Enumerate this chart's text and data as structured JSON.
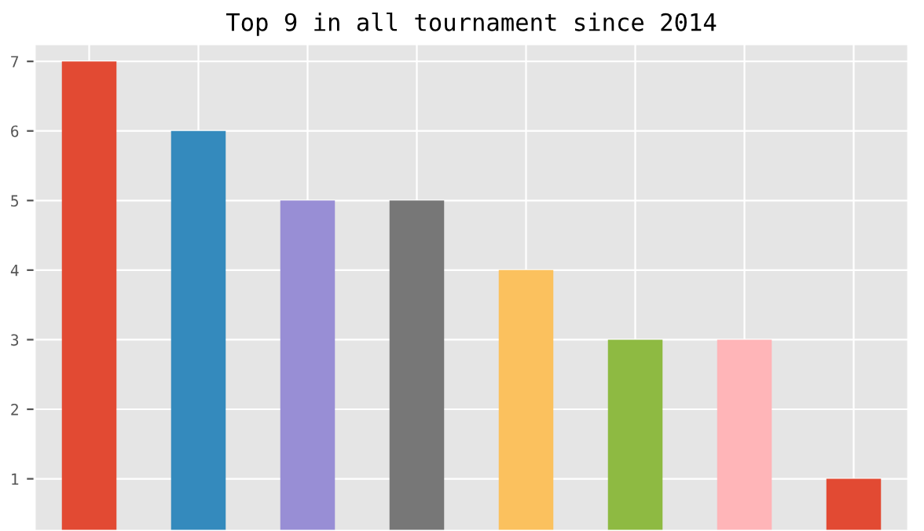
{
  "chart_data": {
    "type": "bar",
    "title": "Top 9 in all tournament since 2014",
    "categories": [
      null,
      null,
      null,
      null,
      null,
      null,
      null,
      null
    ],
    "values": [
      7,
      6,
      5,
      5,
      4,
      3,
      3,
      1
    ],
    "colors": [
      "#e24a33",
      "#348abd",
      "#988ed5",
      "#777777",
      "#fbc15e",
      "#8eba42",
      "#ffb5b8",
      "#e24a33"
    ],
    "ylim": [
      0.25,
      7.25
    ],
    "yticks": [
      1,
      2,
      3,
      4,
      5,
      6,
      7
    ],
    "grid": true,
    "tick_labels": "y"
  }
}
